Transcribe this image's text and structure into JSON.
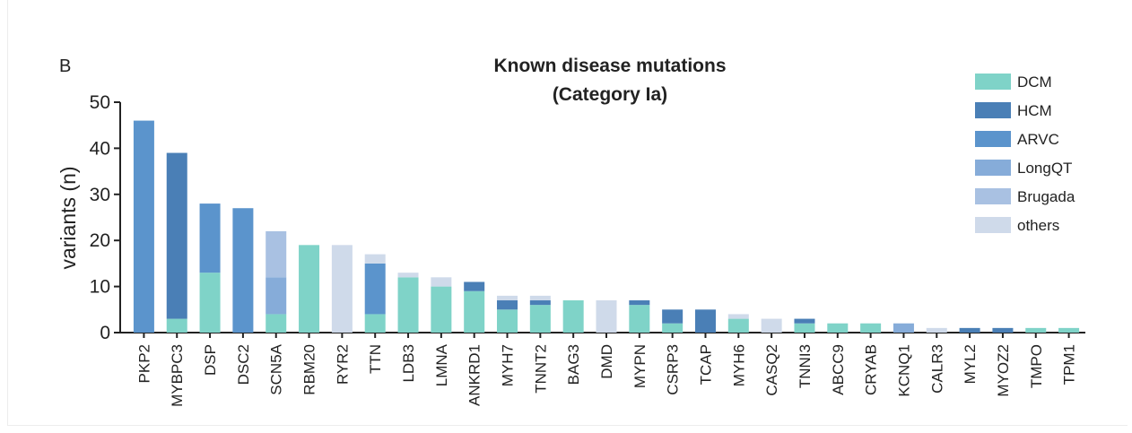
{
  "chart_data": {
    "type": "bar",
    "stacked": true,
    "panel_label": "B",
    "title": "Known disease mutations",
    "subtitle": "(Category Ia)",
    "xlabel": "",
    "ylabel": "variants (n)",
    "ylim": [
      0,
      50
    ],
    "yticks": [
      0,
      10,
      20,
      30,
      40,
      50
    ],
    "grid": false,
    "legend_position": "top-right",
    "categories": [
      "PKP2",
      "MYBPC3",
      "DSP",
      "DSC2",
      "SCN5A",
      "RBM20",
      "RYR2",
      "TTN",
      "LDB3",
      "LMNA",
      "ANKRD1",
      "MYH7",
      "TNNT2",
      "BAG3",
      "DMD",
      "MYPN",
      "CSRP3",
      "TCAP",
      "MYH6",
      "CASQ2",
      "TNNI3",
      "ABCC9",
      "CRYAB",
      "KCNQ1",
      "CALR3",
      "MYL2",
      "MYOZ2",
      "TMPO",
      "TPM1"
    ],
    "series": [
      {
        "name": "DCM",
        "color": "#7fd3c8",
        "values": [
          0,
          3,
          13,
          0,
          4,
          19,
          0,
          4,
          12,
          10,
          9,
          5,
          6,
          7,
          0,
          6,
          2,
          0,
          3,
          0,
          2,
          2,
          2,
          0,
          0,
          0,
          0,
          1,
          1
        ]
      },
      {
        "name": "HCM",
        "color": "#4a7fb6",
        "values": [
          0,
          36,
          0,
          0,
          0,
          0,
          0,
          0,
          0,
          0,
          2,
          2,
          1,
          0,
          0,
          1,
          3,
          5,
          0,
          0,
          1,
          0,
          0,
          0,
          0,
          1,
          1,
          0,
          0
        ]
      },
      {
        "name": "ARVC",
        "color": "#5b94cc",
        "values": [
          46,
          0,
          15,
          27,
          0,
          0,
          0,
          11,
          0,
          0,
          0,
          0,
          0,
          0,
          0,
          0,
          0,
          0,
          0,
          0,
          0,
          0,
          0,
          0,
          0,
          0,
          0,
          0,
          0
        ]
      },
      {
        "name": "LongQT",
        "color": "#86acd9",
        "values": [
          0,
          0,
          0,
          0,
          8,
          0,
          0,
          0,
          0,
          0,
          0,
          0,
          0,
          0,
          0,
          0,
          0,
          0,
          0,
          0,
          0,
          0,
          0,
          2,
          0,
          0,
          0,
          0,
          0
        ]
      },
      {
        "name": "Brugada",
        "color": "#a9c1e2",
        "values": [
          0,
          0,
          0,
          0,
          10,
          0,
          0,
          0,
          0,
          0,
          0,
          0,
          0,
          0,
          0,
          0,
          0,
          0,
          0,
          0,
          0,
          0,
          0,
          0,
          0,
          0,
          0,
          0,
          0
        ]
      },
      {
        "name": "others",
        "color": "#cfdaea",
        "values": [
          0,
          0,
          0,
          0,
          0,
          0,
          19,
          2,
          1,
          2,
          0,
          1,
          1,
          0,
          7,
          0,
          0,
          0,
          1,
          3,
          0,
          0,
          0,
          0,
          1,
          0,
          0,
          0,
          0
        ]
      }
    ]
  }
}
